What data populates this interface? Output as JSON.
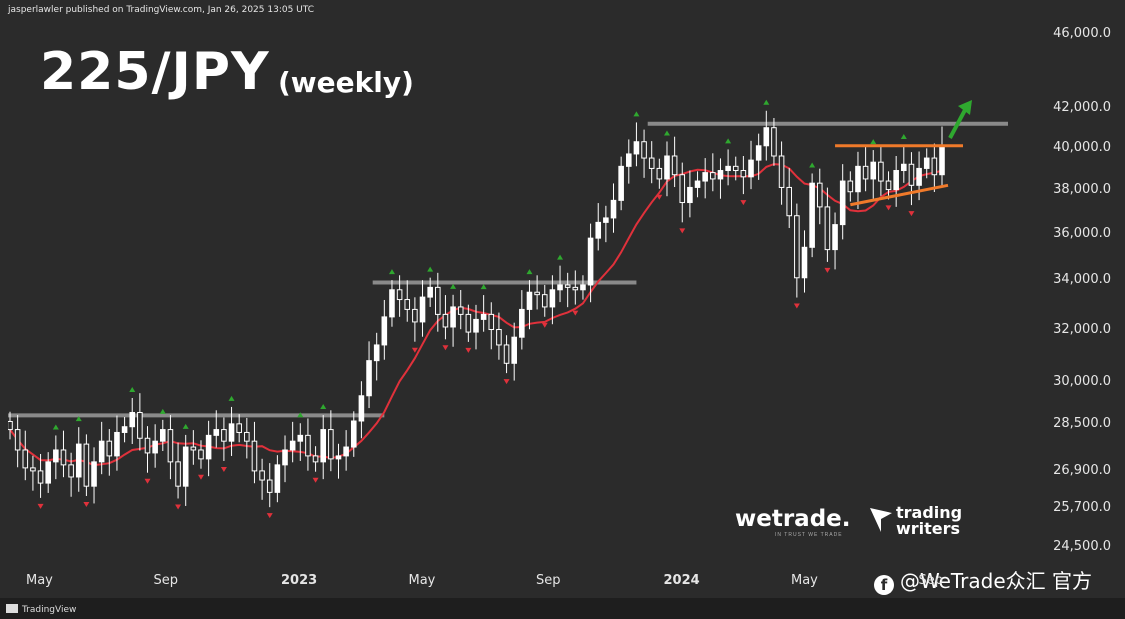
{
  "header": {
    "published": "jasperlawler published on TradingView.com, Jan 26, 2025 13:05 UTC"
  },
  "title": {
    "main": "225/JPY",
    "sub": "(weekly)"
  },
  "branding": {
    "wetrade": "wetrade.",
    "wetrade_tag": "IN TRUST WE TRADE",
    "trading_writers_line1": "trading",
    "trading_writers_line2": "writers",
    "watermark": "@WeTrade众汇 官方",
    "tradingview": "TradingView"
  },
  "colors": {
    "background": "#2b2b2b",
    "candle": "#ffffff",
    "ma": "#e0313b",
    "resistance": "#8a8a8a",
    "triangle": "#f07a2a",
    "up_arrow": "#2fa82f",
    "fractal_up": "#2fa82f",
    "fractal_down": "#e0313b"
  },
  "chart_data": {
    "type": "candlestick",
    "y_axis_ticks": [
      "46,000.0",
      "42,000.0",
      "40,000.0",
      "38,000.0",
      "36,000.0",
      "34,000.0",
      "32,000.0",
      "30,000.0",
      "28,500.0",
      "26,900.0",
      "25,700.0",
      "24,500.0"
    ],
    "y_axis_scale": "log",
    "x_axis_ticks": [
      {
        "label": "May",
        "bold": false
      },
      {
        "label": "Sep",
        "bold": false
      },
      {
        "label": "2023",
        "bold": true
      },
      {
        "label": "May",
        "bold": false
      },
      {
        "label": "Sep",
        "bold": false
      },
      {
        "label": "2024",
        "bold": true
      },
      {
        "label": "May",
        "bold": false
      },
      {
        "label": "Sep",
        "bold": false
      }
    ],
    "ylim": [
      24000,
      47000
    ],
    "resistance_levels": [
      28800,
      33900,
      41200
    ],
    "triangle_upper": 40100,
    "triangle_lower": [
      37300,
      38200
    ],
    "series_close": [
      28300,
      27600,
      27000,
      26900,
      26500,
      27200,
      27600,
      27100,
      26700,
      27800,
      26400,
      27200,
      27900,
      27400,
      28200,
      28400,
      28900,
      28000,
      27500,
      27900,
      28300,
      27200,
      26400,
      27700,
      27600,
      27300,
      28100,
      28300,
      27900,
      28500,
      28200,
      27900,
      26900,
      26600,
      26200,
      27100,
      27600,
      27900,
      28100,
      27400,
      27200,
      28300,
      27300,
      27400,
      27700,
      28600,
      29500,
      30800,
      31400,
      32500,
      33600,
      33200,
      32800,
      32300,
      33300,
      33700,
      32600,
      32100,
      32900,
      32600,
      31900,
      32400,
      32600,
      32000,
      31400,
      30700,
      31700,
      32800,
      33500,
      33400,
      32900,
      33600,
      33800,
      33700,
      33600,
      33800,
      35800,
      36500,
      36700,
      37500,
      39100,
      39700,
      40300,
      39500,
      39000,
      38500,
      39600,
      38700,
      37400,
      38100,
      38400,
      38800,
      38500,
      38900,
      39100,
      38900,
      38600,
      39400,
      40100,
      41000,
      39600,
      38100,
      36800,
      34100,
      35400,
      38300,
      37200,
      35300,
      36400,
      38400,
      37900,
      39100,
      38500,
      39300,
      38400,
      38000,
      38900,
      39200,
      38200,
      39000,
      39500,
      38700,
      40100
    ]
  }
}
